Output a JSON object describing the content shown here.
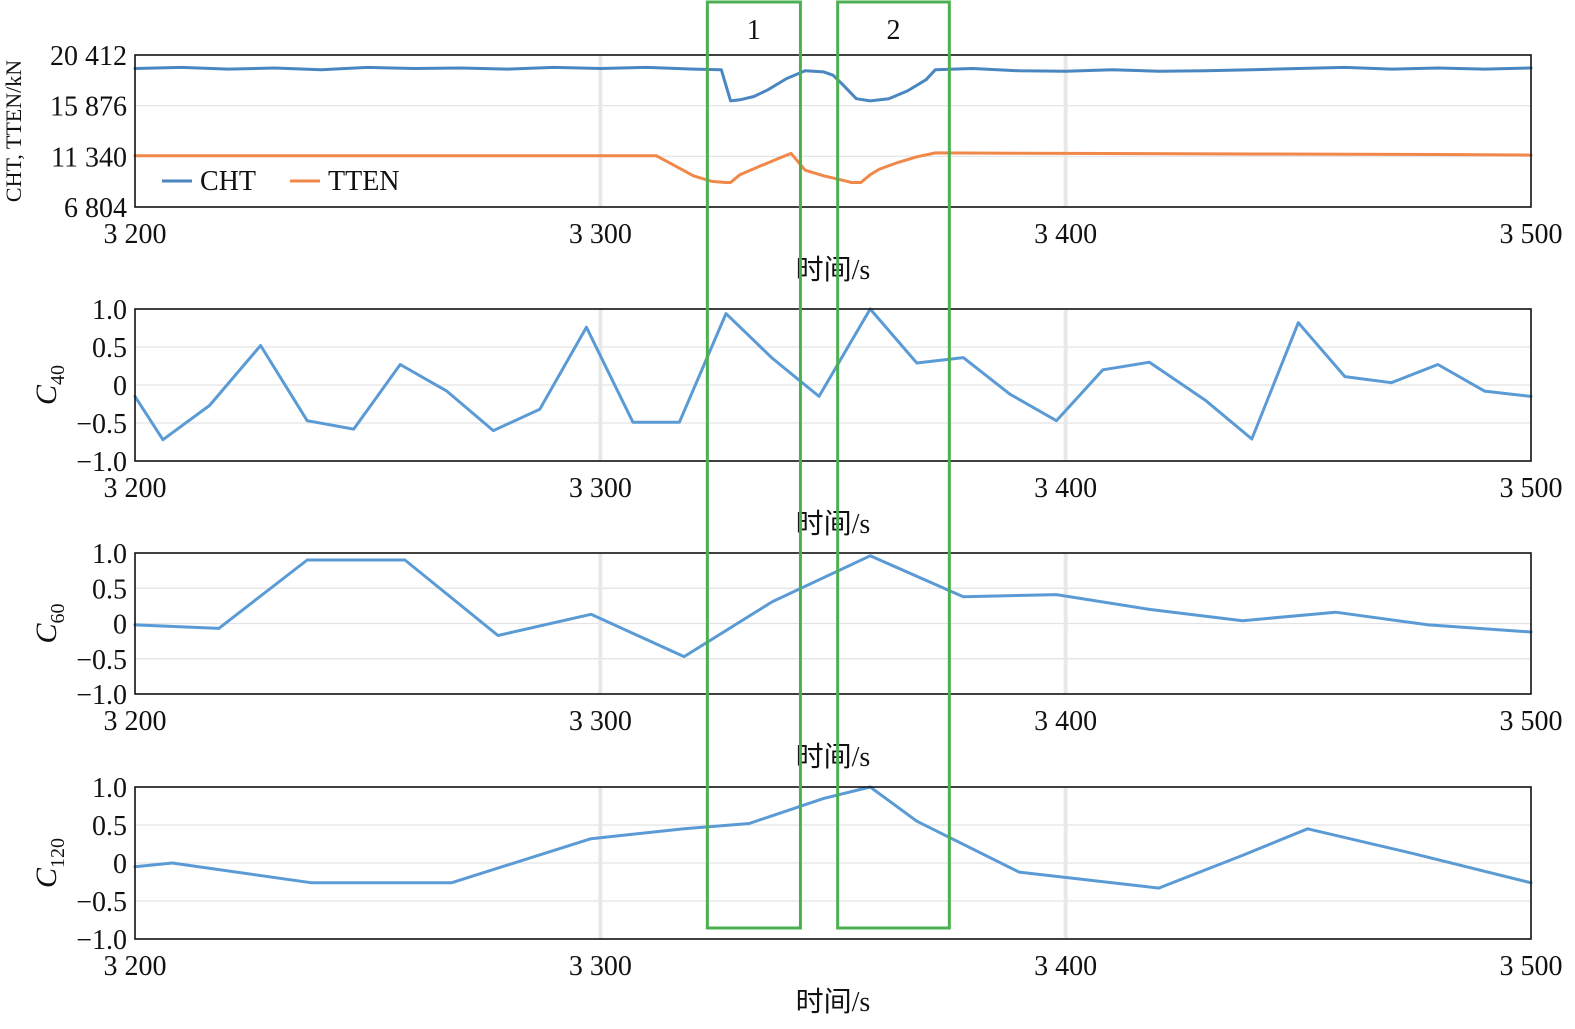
{
  "chart_data": [
    {
      "type": "line",
      "xlabel": "时间/s",
      "ylabel": "CHT, TTEN/kN",
      "xlim": [
        3200,
        3500
      ],
      "ylim": [
        6804,
        20412
      ],
      "xticks": [
        3200,
        3300,
        3400,
        3500
      ],
      "xtick_labels": [
        "3 200",
        "3 300",
        "3 400",
        "3 500"
      ],
      "yticks": [
        6804,
        11340,
        15876,
        20412
      ],
      "ytick_labels": [
        "6 804",
        "11 340",
        "15 876",
        "20 412"
      ],
      "legend": "bottom-left",
      "series": [
        {
          "name": "CHT",
          "color": "#4a86c0",
          "x": [
            3200,
            3210,
            3220,
            3230,
            3240,
            3250,
            3260,
            3270,
            3280,
            3290,
            3300,
            3310,
            3320,
            3326,
            3328,
            3330,
            3333,
            3336,
            3340,
            3344,
            3348,
            3350,
            3352,
            3355,
            3358,
            3362,
            3366,
            3370,
            3372,
            3380,
            3390,
            3400,
            3410,
            3420,
            3430,
            3440,
            3450,
            3460,
            3470,
            3480,
            3490,
            3500
          ],
          "y": [
            19200,
            19300,
            19150,
            19250,
            19100,
            19300,
            19200,
            19250,
            19150,
            19300,
            19200,
            19300,
            19150,
            19100,
            16300,
            16400,
            16700,
            17300,
            18300,
            19000,
            18900,
            18600,
            17800,
            16500,
            16300,
            16500,
            17200,
            18200,
            19100,
            19200,
            19000,
            18950,
            19100,
            18950,
            19000,
            19100,
            19200,
            19300,
            19150,
            19250,
            19150,
            19250
          ]
        },
        {
          "name": "TTEN",
          "color": "#f0884a",
          "x": [
            3200,
            3240,
            3280,
            3312,
            3316,
            3320,
            3324,
            3327,
            3328,
            3330,
            3334,
            3338,
            3341,
            3344,
            3348,
            3352,
            3354,
            3356,
            3358,
            3360,
            3364,
            3368,
            3372,
            3400,
            3440,
            3480,
            3500
          ],
          "y": [
            11400,
            11400,
            11400,
            11400,
            10500,
            9600,
            9100,
            9000,
            9000,
            9700,
            10400,
            11100,
            11600,
            10100,
            9600,
            9200,
            9000,
            9000,
            9700,
            10200,
            10800,
            11300,
            11650,
            11600,
            11550,
            11500,
            11450
          ]
        }
      ]
    },
    {
      "type": "line",
      "xlabel": "时间/s",
      "ylabel": "C",
      "ylabel_sub": "40",
      "xlim": [
        3200,
        3500
      ],
      "ylim": [
        -1.0,
        1.0
      ],
      "xticks": [
        3200,
        3300,
        3400,
        3500
      ],
      "xtick_labels": [
        "3 200",
        "3 300",
        "3 400",
        "3 500"
      ],
      "yticks": [
        -1.0,
        -0.5,
        0,
        0.5,
        1.0
      ],
      "ytick_labels": [
        "−1.0",
        "−0.5",
        "0",
        "0.5",
        "1.0"
      ],
      "series": [
        {
          "color": "#5b9bd5",
          "x": [
            3200,
            3206,
            3216,
            3227,
            3237,
            3247,
            3257,
            3267,
            3277,
            3287,
            3297,
            3307,
            3317,
            3327,
            3337,
            3347,
            3358,
            3368,
            3378,
            3388,
            3398,
            3408,
            3418,
            3430,
            3440,
            3450,
            3460,
            3470,
            3480,
            3490,
            3500
          ],
          "y": [
            -0.15,
            -0.72,
            -0.27,
            0.52,
            -0.47,
            -0.58,
            0.27,
            -0.08,
            -0.6,
            -0.32,
            0.76,
            -0.49,
            -0.49,
            0.94,
            0.35,
            -0.15,
            1.0,
            0.29,
            0.36,
            -0.12,
            -0.47,
            0.2,
            0.3,
            -0.2,
            -0.71,
            0.82,
            0.11,
            0.03,
            0.27,
            -0.08,
            -0.15
          ]
        }
      ]
    },
    {
      "type": "line",
      "xlabel": "时间/s",
      "ylabel": "C",
      "ylabel_sub": "60",
      "xlim": [
        3200,
        3500
      ],
      "ylim": [
        -1.0,
        1.0
      ],
      "xticks": [
        3200,
        3300,
        3400,
        3500
      ],
      "xtick_labels": [
        "3 200",
        "3 300",
        "3 400",
        "3 500"
      ],
      "yticks": [
        -1.0,
        -0.5,
        0,
        0.5,
        1.0
      ],
      "ytick_labels": [
        "−1.0",
        "−0.5",
        "0",
        "0.5",
        "1.0"
      ],
      "series": [
        {
          "color": "#5b9bd5",
          "x": [
            3200,
            3218,
            3237,
            3258,
            3278,
            3298,
            3318,
            3337,
            3358,
            3378,
            3398,
            3418,
            3438,
            3458,
            3478,
            3500
          ],
          "y": [
            -0.02,
            -0.07,
            0.9,
            0.9,
            -0.17,
            0.13,
            -0.47,
            0.31,
            0.96,
            0.38,
            0.41,
            0.2,
            0.04,
            0.16,
            -0.02,
            -0.12
          ]
        }
      ]
    },
    {
      "type": "line",
      "xlabel": "时间/s",
      "ylabel": "C",
      "ylabel_sub": "120",
      "xlim": [
        3200,
        3500
      ],
      "ylim": [
        -1.0,
        1.0
      ],
      "xticks": [
        3200,
        3300,
        3400,
        3500
      ],
      "xtick_labels": [
        "3 200",
        "3 300",
        "3 400",
        "3 500"
      ],
      "yticks": [
        -1.0,
        -0.5,
        0,
        0.5,
        1.0
      ],
      "ytick_labels": [
        "−1.0",
        "−0.5",
        "0",
        "0.5",
        "1.0"
      ],
      "series": [
        {
          "color": "#5b9bd5",
          "x": [
            3200,
            3208,
            3238,
            3268,
            3298,
            3318,
            3332,
            3348,
            3358,
            3368,
            3390,
            3420,
            3438,
            3452,
            3475,
            3500
          ],
          "y": [
            -0.05,
            0.0,
            -0.26,
            -0.26,
            0.32,
            0.45,
            0.52,
            0.85,
            1.0,
            0.55,
            -0.12,
            -0.33,
            0.1,
            0.45,
            0.12,
            -0.26
          ]
        }
      ]
    }
  ],
  "annotations": {
    "color": "#4caf50",
    "boxes": [
      {
        "label": "1",
        "x_start": 3323,
        "x_end": 3343
      },
      {
        "label": "2",
        "x_start": 3351,
        "x_end": 3375
      }
    ]
  }
}
